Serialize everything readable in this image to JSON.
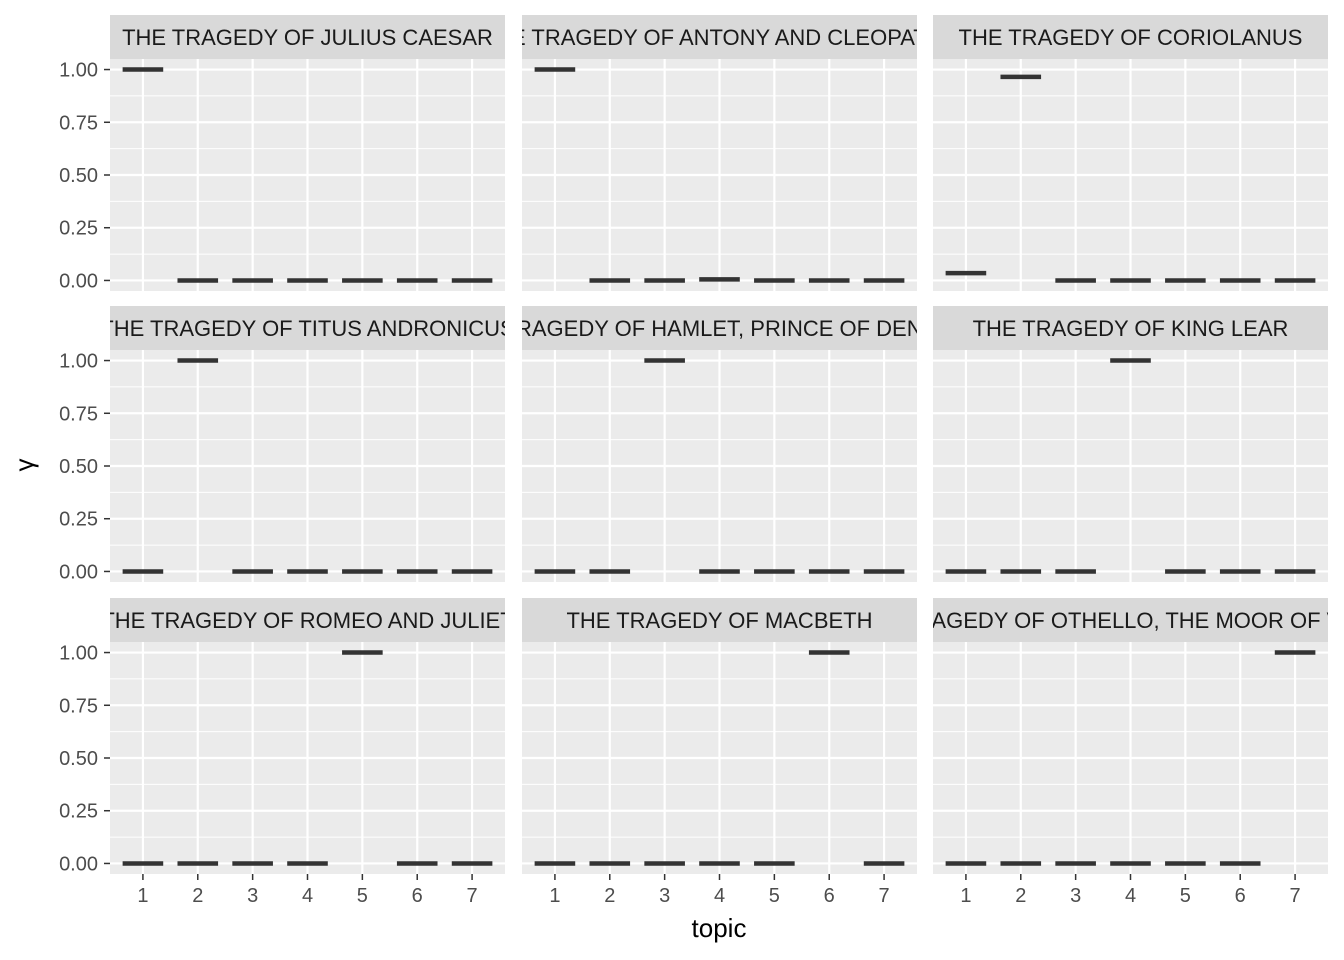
{
  "chart_data": {
    "type": "boxplot",
    "facet_layout": "3x3",
    "xlabel": "topic",
    "ylabel": "γ",
    "x_ticks": [
      "1",
      "2",
      "3",
      "4",
      "5",
      "6",
      "7"
    ],
    "y_ticks": [
      "0.00",
      "0.25",
      "0.50",
      "0.75",
      "1.00"
    ],
    "ylim": [
      -0.05,
      1.05
    ],
    "grid": true,
    "colors": {
      "panel": "#ebebeb",
      "strip": "#d9d9d9",
      "grid": "#ffffff",
      "mark": "#333333"
    },
    "facets": [
      {
        "title": "THE TRAGEDY OF JULIUS CAESAR",
        "topics": [
          1,
          2,
          3,
          4,
          5,
          6,
          7
        ],
        "values": [
          1.0,
          0.0,
          0.0,
          0.0,
          0.0,
          0.0,
          0.0
        ]
      },
      {
        "title": "THE TRAGEDY OF ANTONY AND CLEOPATRA",
        "topics": [
          1,
          2,
          3,
          4,
          5,
          6,
          7
        ],
        "values": [
          1.0,
          0.0,
          0.0,
          0.005,
          0.0,
          0.0,
          0.0
        ]
      },
      {
        "title": "THE TRAGEDY OF CORIOLANUS",
        "topics": [
          1,
          2,
          3,
          4,
          5,
          6,
          7
        ],
        "values": [
          0.035,
          0.965,
          0.0,
          0.0,
          0.0,
          0.0,
          0.0
        ]
      },
      {
        "title": "THE TRAGEDY OF TITUS ANDRONICUS",
        "topics": [
          1,
          2,
          3,
          4,
          5,
          6,
          7
        ],
        "values": [
          0.0,
          1.0,
          0.0,
          0.0,
          0.0,
          0.0,
          0.0
        ]
      },
      {
        "title": "THE TRAGEDY OF HAMLET, PRINCE OF DENMARK",
        "topics": [
          1,
          2,
          3,
          4,
          5,
          6,
          7
        ],
        "values": [
          0.0,
          0.0,
          1.0,
          0.0,
          0.0,
          0.0,
          0.0
        ]
      },
      {
        "title": "THE TRAGEDY OF KING LEAR",
        "topics": [
          1,
          2,
          3,
          4,
          5,
          6,
          7
        ],
        "values": [
          0.0,
          0.0,
          0.0,
          1.0,
          0.0,
          0.0,
          0.0
        ]
      },
      {
        "title": "THE TRAGEDY OF ROMEO AND JULIET",
        "topics": [
          1,
          2,
          3,
          4,
          5,
          6,
          7
        ],
        "values": [
          0.0,
          0.0,
          0.0,
          0.0,
          1.0,
          0.0,
          0.0
        ]
      },
      {
        "title": "THE TRAGEDY OF MACBETH",
        "topics": [
          1,
          2,
          3,
          4,
          5,
          6,
          7
        ],
        "values": [
          0.0,
          0.0,
          0.0,
          0.0,
          0.0,
          1.0,
          0.0
        ]
      },
      {
        "title": "THE TRAGEDY OF OTHELLO, THE MOOR OF VENICE",
        "topics": [
          1,
          2,
          3,
          4,
          5,
          6,
          7
        ],
        "values": [
          0.0,
          0.0,
          0.0,
          0.0,
          0.0,
          0.0,
          1.0
        ]
      }
    ]
  }
}
